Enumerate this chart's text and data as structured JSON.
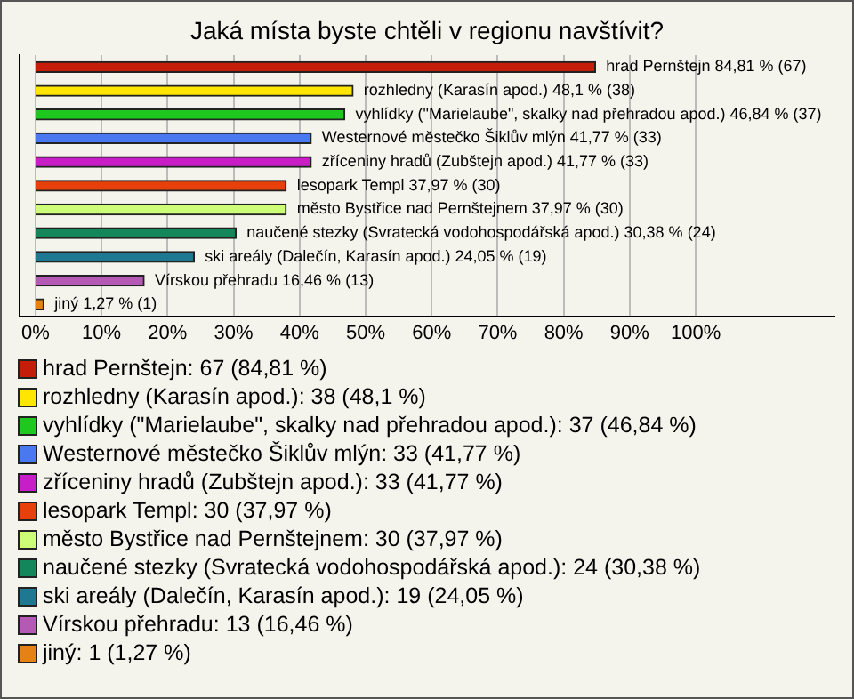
{
  "chart_data": {
    "type": "bar",
    "orientation": "horizontal",
    "title": "Jaká místa byste chtěli v regionu navštívit?",
    "categories": [
      "hrad Pernštejn",
      "rozhledny (Karasín apod.)",
      "vyhlídky (\"Marielaube\", skalky nad přehradou apod.)",
      "Westernové městečko Šiklův mlýn",
      "zříceniny hradů (Zubštejn apod.)",
      "lesopark Templ",
      "město Bystřice nad Pernštejnem",
      "naučené stezky (Svratecká vodohospodářská apod.)",
      "ski areály (Dalečín, Karasín apod.)",
      "Vírskou přehradu",
      "jiný"
    ],
    "values": [
      84.81,
      48.1,
      46.84,
      41.77,
      41.77,
      37.97,
      37.97,
      30.38,
      24.05,
      16.46,
      1.27
    ],
    "value_labels": [
      "84,81 % (67)",
      "48,1 % (38)",
      "46,84 % (37)",
      "41,77 % (33)",
      "41,77 % (33)",
      "37,97 % (30)",
      "37,97 % (30)",
      "30,38 % (24)",
      "24,05 % (19)",
      "16,46 % (13)",
      "1,27 % (1)"
    ],
    "colors": [
      "#c41e0a",
      "#ffe600",
      "#1ec81e",
      "#4a78f0",
      "#c81ec8",
      "#e8400a",
      "#ccff77",
      "#14875a",
      "#1e7891",
      "#b45ab4",
      "#e68214"
    ],
    "xlim": [
      -2.4,
      121
    ],
    "xticks": [
      {
        "value": 0,
        "label": "0%"
      },
      {
        "value": 10,
        "label": "10%"
      },
      {
        "value": 20,
        "label": "20%"
      },
      {
        "value": 30,
        "label": "30%"
      },
      {
        "value": 40,
        "label": "40%"
      },
      {
        "value": 50,
        "label": "50%"
      },
      {
        "value": 60,
        "label": "60%"
      },
      {
        "value": 70,
        "label": "70%"
      },
      {
        "value": 80,
        "label": "80%"
      },
      {
        "value": 90,
        "label": "90%"
      },
      {
        "value": 100,
        "label": "100%"
      }
    ],
    "grid": "x",
    "tick_labels": "x",
    "annotations": [
      "hrad Pernštejn: 67 (84,81 %)",
      "rozhledny (Karasín apod.): 38 (48,1 %)",
      "vyhlídky (\"Marielaube\", skalky nad přehradou apod.): 37 (46,84 %)",
      "Westernové městečko Šiklův mlýn: 33 (41,77 %)",
      "zříceniny hradů (Zubštejn apod.): 33 (41,77 %)",
      "lesopark Templ: 30 (37,97 %)",
      "město Bystřice nad Pernštejnem: 30 (37,97 %)",
      "naučené stezky (Svratecká vodohospodářská apod.): 24 (30,38 %)",
      "ski areály (Dalečín, Karasín apod.): 19 (24,05 %)",
      "Vírskou přehradu: 13 (16,46 %)",
      "jiný: 1 (1,27 %)"
    ]
  }
}
